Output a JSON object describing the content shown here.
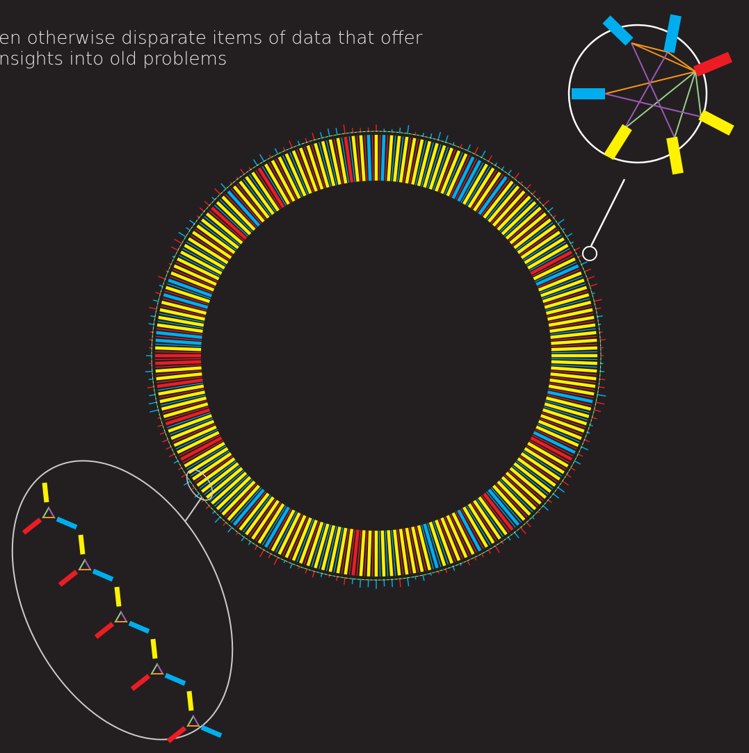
{
  "caption": {
    "lines": [
      "en otherwise disparate items of data that offer",
      "nsights into old problems"
    ]
  }
}
